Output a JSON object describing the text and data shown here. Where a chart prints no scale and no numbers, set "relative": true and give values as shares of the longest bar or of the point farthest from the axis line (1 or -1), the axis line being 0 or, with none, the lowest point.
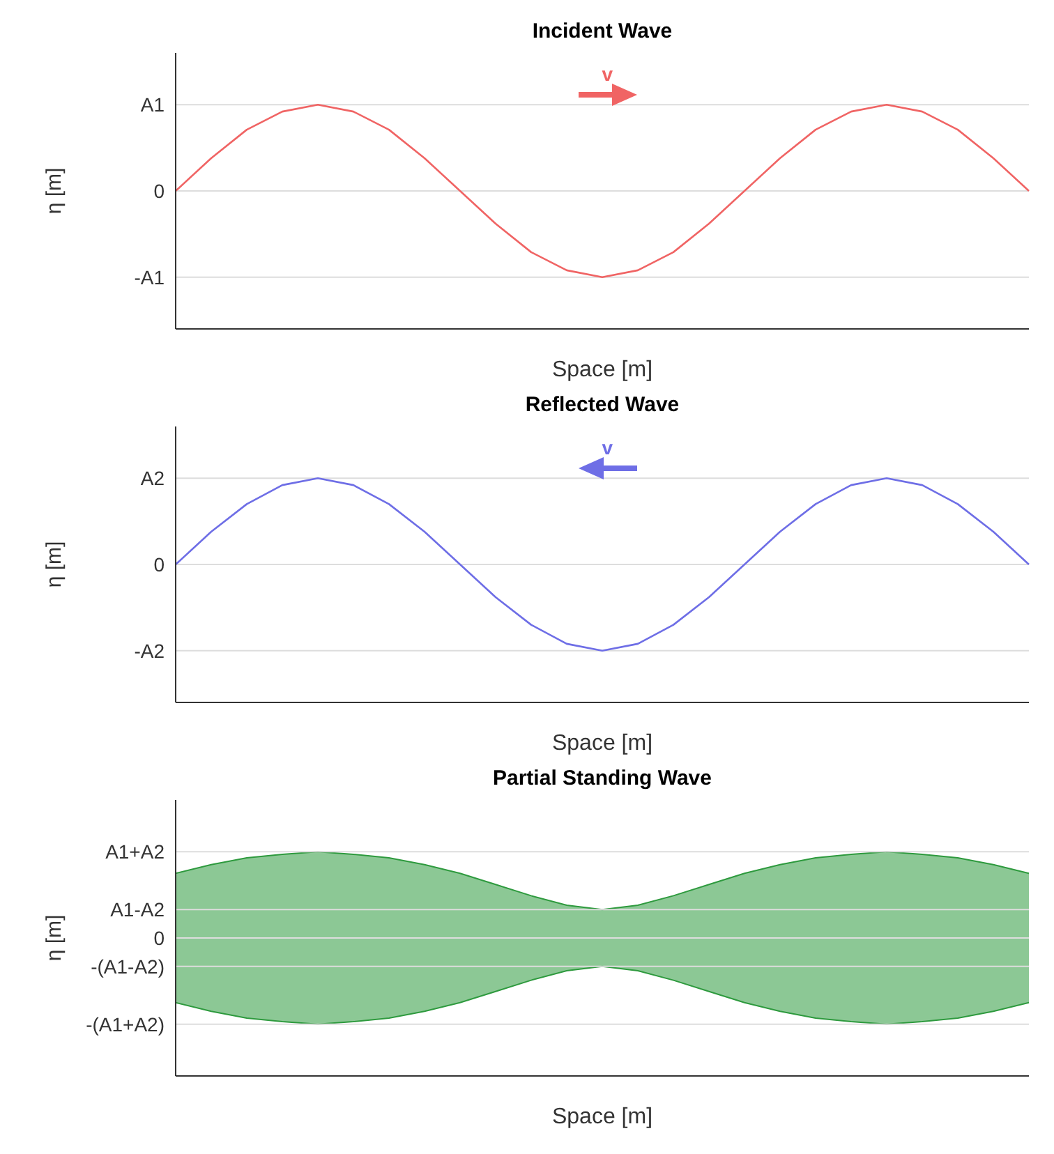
{
  "chart_data": [
    {
      "type": "line",
      "title": "Incident Wave",
      "xlabel": "Space [m]",
      "ylabel": "η [m]",
      "relative": true,
      "grid": "y",
      "annotations": [
        "A1",
        "0",
        "-A1",
        "v"
      ],
      "categories": [
        null,
        null,
        null,
        null,
        null,
        null,
        null,
        null,
        null,
        null,
        null,
        null,
        null,
        null,
        null,
        null,
        null,
        null,
        null,
        null,
        null,
        null,
        null,
        null,
        null
      ],
      "series": [
        {
          "color": "#f06464",
          "values": [
            0,
            0.38,
            0.71,
            0.92,
            1,
            0.92,
            0.71,
            0.38,
            0,
            -0.38,
            -0.71,
            -0.92,
            -1,
            -0.92,
            -0.71,
            -0.38,
            0,
            0.38,
            0.71,
            0.92,
            1,
            0.92,
            0.71,
            0.38,
            0
          ]
        }
      ]
    },
    {
      "type": "line",
      "title": "Reflected Wave",
      "xlabel": "Space [m]",
      "ylabel": "η [m]",
      "relative": true,
      "grid": "y",
      "annotations": [
        "A2",
        "0",
        "-A2",
        "v"
      ],
      "categories": [
        null,
        null,
        null,
        null,
        null,
        null,
        null,
        null,
        null,
        null,
        null,
        null,
        null,
        null,
        null,
        null,
        null,
        null,
        null,
        null,
        null,
        null,
        null,
        null,
        null
      ],
      "series": [
        {
          "color": "#6e6ee6",
          "values": [
            0,
            0.38,
            0.7,
            0.92,
            1,
            0.92,
            0.7,
            0.38,
            0,
            -0.38,
            -0.7,
            -0.92,
            -1,
            -0.92,
            -0.7,
            -0.38,
            0,
            0.38,
            0.7,
            0.92,
            1,
            0.92,
            0.7,
            0.38,
            0
          ]
        }
      ]
    },
    {
      "type": "area",
      "title": "Partial Standing Wave",
      "xlabel": "Space [m]",
      "ylabel": "η [m]",
      "relative": true,
      "grid": "y",
      "annotations": [
        "A1+A2",
        "A1-A2",
        "0",
        "-(A1-A2)",
        "-(A1+A2)"
      ],
      "categories": [
        null,
        null,
        null,
        null,
        null,
        null,
        null,
        null,
        null,
        null,
        null,
        null,
        null,
        null,
        null,
        null,
        null,
        null,
        null,
        null,
        null,
        null,
        null,
        null,
        null
      ],
      "series": [
        {
          "color": "#2e9a3e",
          "values": [
            0.75,
            0.85,
            0.93,
            0.97,
            1,
            0.97,
            0.93,
            0.85,
            0.75,
            0.62,
            0.49,
            0.38,
            0.33,
            0.38,
            0.49,
            0.62,
            0.75,
            0.85,
            0.93,
            0.97,
            1,
            0.97,
            0.93,
            0.85,
            0.75
          ]
        },
        {
          "color": "#2e9a3e",
          "values": [
            -0.75,
            -0.85,
            -0.93,
            -0.97,
            -1,
            -0.97,
            -0.93,
            -0.85,
            -0.75,
            -0.62,
            -0.49,
            -0.38,
            -0.33,
            -0.38,
            -0.49,
            -0.62,
            -0.75,
            -0.85,
            -0.93,
            -0.97,
            -1,
            -0.97,
            -0.93,
            -0.85,
            -0.75
          ]
        }
      ]
    }
  ]
}
